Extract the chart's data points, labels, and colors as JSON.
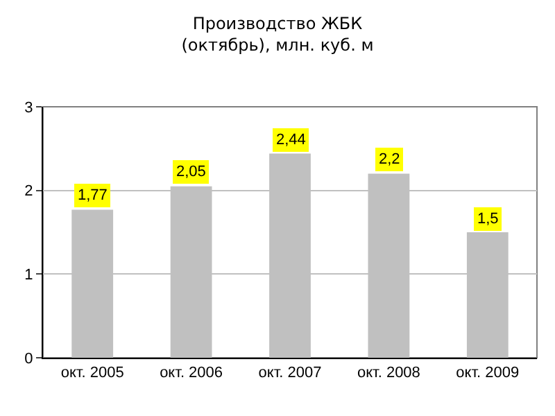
{
  "chart_data": {
    "type": "bar",
    "title": "Производство ЖБК\n(октябрь), млн. куб. м",
    "categories": [
      "окт. 2005",
      "окт. 2006",
      "окт. 2007",
      "окт. 2008",
      "окт. 2009"
    ],
    "values": [
      1.77,
      2.05,
      2.44,
      2.2,
      1.5
    ],
    "value_labels": [
      "1,77",
      "2,05",
      "2,44",
      "2,2",
      "1,5"
    ],
    "color": "#c0c0c0",
    "ylim": [
      0,
      3
    ],
    "yticks": [
      0,
      1,
      2,
      3
    ],
    "grid": "y"
  }
}
